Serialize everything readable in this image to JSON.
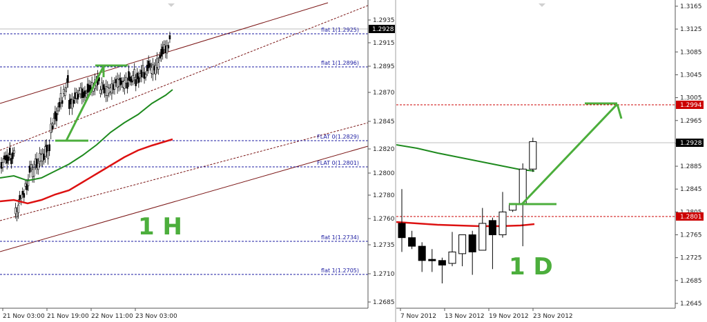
{
  "colors": {
    "bull": "#ffffff",
    "bear": "#000000",
    "candle_outline": "#000000",
    "ma_green": "#1e8a1e",
    "ma_red": "#dd1111",
    "channel": "#7a1414",
    "hline_blue": "#1a1aa0",
    "hline_red": "#cc0000",
    "arrow": "#4cae3c"
  },
  "left_chart": {
    "timeframe_label": "1 H",
    "current_price": "1.2928",
    "price_axis": [
      "1.2935",
      "1.2915",
      "1.2895",
      "1.2870",
      "1.2845",
      "1.2820",
      "1.2800",
      "1.2780",
      "1.2760",
      "1.2735",
      "1.2710",
      "1.2685"
    ],
    "time_axis": [
      "21 Nov 03:00",
      "21 Nov 19:00",
      "22 Nov 11:00",
      "23 Nov 03:00"
    ],
    "hlines": [
      {
        "label": "flat 1(1.2925)",
        "price": 1.2925
      },
      {
        "label": "flat 1(1.2896)",
        "price": 1.2896
      },
      {
        "label": "FLAT 0(1.2829)",
        "price": 1.2829
      },
      {
        "label": "FLAT 0(1.2801)",
        "price": 1.2801
      },
      {
        "label": "flat 1(1.2734)",
        "price": 1.2734
      },
      {
        "label": "flat 1(1.2705)",
        "price": 1.2705
      }
    ]
  },
  "right_chart": {
    "timeframe_label": "1 D",
    "current_price": "1.2928",
    "target_price": "1.2994",
    "support_price": "1.2801",
    "price_axis": [
      "1.3165",
      "1.3125",
      "1.3085",
      "1.3045",
      "1.3005",
      "1.2965",
      "1.2925",
      "1.2885",
      "1.2845",
      "1.2805",
      "1.2765",
      "1.2725",
      "1.2685",
      "1.2645"
    ],
    "time_axis": [
      "7 Nov 2012",
      "13 Nov 2012",
      "19 Nov 2012",
      "23 Nov 2012"
    ],
    "candles": [
      {
        "o": 1.2785,
        "h": 1.2845,
        "l": 1.2735,
        "c": 1.276
      },
      {
        "o": 1.276,
        "h": 1.2772,
        "l": 1.274,
        "c": 1.2745
      },
      {
        "o": 1.2745,
        "h": 1.2752,
        "l": 1.27,
        "c": 1.272
      },
      {
        "o": 1.2722,
        "h": 1.274,
        "l": 1.27,
        "c": 1.272
      },
      {
        "o": 1.272,
        "h": 1.2725,
        "l": 1.268,
        "c": 1.2712
      },
      {
        "o": 1.2715,
        "h": 1.277,
        "l": 1.271,
        "c": 1.2735
      },
      {
        "o": 1.2732,
        "h": 1.2765,
        "l": 1.271,
        "c": 1.2765
      },
      {
        "o": 1.2765,
        "h": 1.2772,
        "l": 1.2695,
        "c": 1.2735
      },
      {
        "o": 1.2738,
        "h": 1.2812,
        "l": 1.2738,
        "c": 1.2785
      },
      {
        "o": 1.279,
        "h": 1.2795,
        "l": 1.2705,
        "c": 1.2765
      },
      {
        "o": 1.2765,
        "h": 1.284,
        "l": 1.276,
        "c": 1.2805
      },
      {
        "o": 1.2808,
        "h": 1.282,
        "l": 1.2805,
        "c": 1.282
      },
      {
        "o": 1.282,
        "h": 1.289,
        "l": 1.2745,
        "c": 1.288
      },
      {
        "o": 1.288,
        "h": 1.2935,
        "l": 1.2875,
        "c": 1.2928
      }
    ]
  }
}
